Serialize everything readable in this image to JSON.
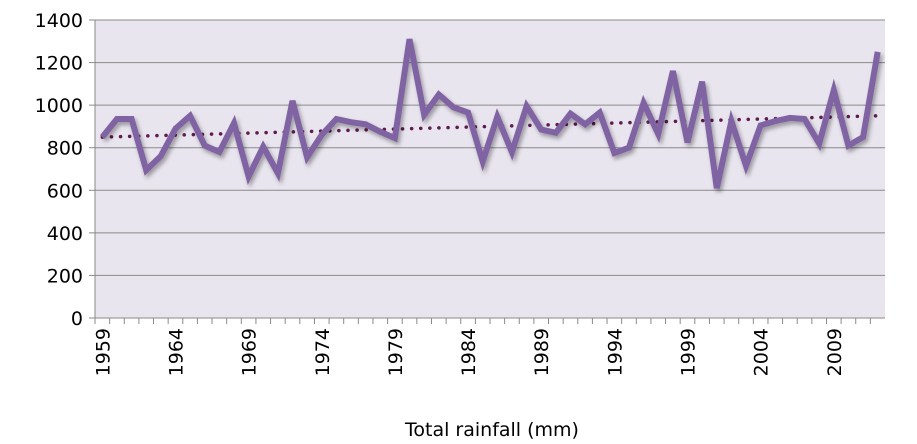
{
  "chart_data": {
    "type": "line",
    "title": "",
    "xlabel": "",
    "ylabel": "",
    "ylim": [
      0,
      1400
    ],
    "yticks": [
      0,
      200,
      400,
      600,
      800,
      1000,
      1200,
      1400
    ],
    "xlim": [
      1959,
      2012
    ],
    "xtick_labels": [
      "1959",
      "1964",
      "1969",
      "1974",
      "1979",
      "1984",
      "1989",
      "1994",
      "1999",
      "2004",
      "2009"
    ],
    "grid": "horizontal",
    "plot_background": "#e9e5ef",
    "legend_position": "bottom",
    "x": [
      1959,
      1960,
      1961,
      1962,
      1963,
      1964,
      1965,
      1966,
      1967,
      1968,
      1969,
      1970,
      1971,
      1972,
      1973,
      1974,
      1975,
      1976,
      1977,
      1978,
      1979,
      1980,
      1981,
      1982,
      1983,
      1984,
      1985,
      1986,
      1987,
      1988,
      1989,
      1990,
      1991,
      1992,
      1993,
      1994,
      1995,
      1996,
      1997,
      1998,
      1999,
      2000,
      2001,
      2002,
      2003,
      2004,
      2005,
      2006,
      2007,
      2008,
      2009,
      2010,
      2011,
      2012
    ],
    "series": [
      {
        "name": "Total rainfall (mm)",
        "color": "#8064a2",
        "values": [
          850,
          935,
          935,
          695,
          760,
          890,
          950,
          810,
          780,
          915,
          665,
          805,
          680,
          1020,
          755,
          860,
          935,
          920,
          910,
          875,
          845,
          1310,
          955,
          1050,
          990,
          965,
          735,
          945,
          780,
          995,
          885,
          870,
          960,
          910,
          965,
          775,
          800,
          1010,
          865,
          1160,
          825,
          1110,
          610,
          925,
          715,
          905,
          925,
          940,
          935,
          820,
          1070,
          810,
          850,
          1250
        ]
      }
    ],
    "trendline": {
      "color": "#5e1c4e",
      "style": "dotted",
      "start": 850,
      "end": 950
    }
  }
}
